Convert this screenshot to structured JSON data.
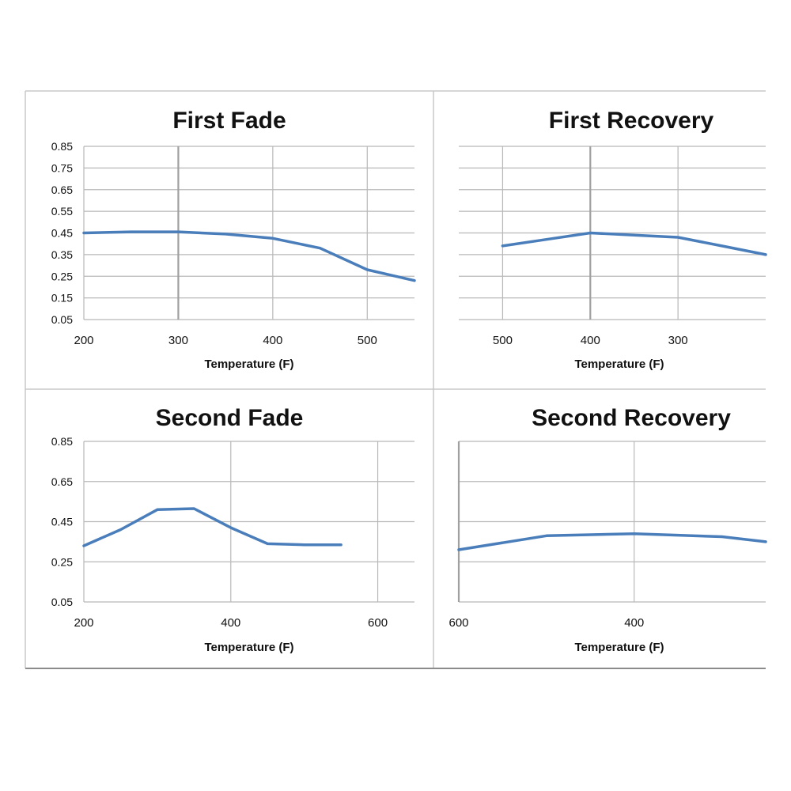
{
  "colors": {
    "line": "#4a7ebb",
    "grid": "#b8b8b8",
    "frame": "#a0a0a0",
    "text": "#111111"
  },
  "chart_data": [
    {
      "type": "line",
      "title": "First Fade",
      "xlabel": "Temperature (F)",
      "ylabel": "",
      "x_ticks": [
        200,
        300,
        400,
        500
      ],
      "y_ticks": [
        "0.85",
        "0.75",
        "0.65",
        "0.55",
        "0.45",
        "0.35",
        "0.25",
        "0.15",
        "0.05"
      ],
      "xlim": [
        200,
        550
      ],
      "ylim": [
        0.05,
        0.85
      ],
      "grid": true,
      "series": [
        {
          "x": [
            200,
            250,
            300,
            350,
            400,
            450,
            500,
            550
          ],
          "y": [
            0.45,
            0.455,
            0.455,
            0.445,
            0.425,
            0.38,
            0.28,
            0.23
          ]
        }
      ]
    },
    {
      "type": "line",
      "title": "First Recovery",
      "xlabel": "Temperature (F)",
      "ylabel": "",
      "x_ticks": [
        500,
        400,
        300
      ],
      "y_ticks": [],
      "xlim": [
        550,
        200
      ],
      "ylim": [
        0.05,
        0.85
      ],
      "grid": true,
      "series": [
        {
          "x": [
            500,
            450,
            400,
            350,
            300,
            250,
            200
          ],
          "y": [
            0.39,
            0.42,
            0.45,
            0.44,
            0.43,
            0.39,
            0.35
          ]
        }
      ]
    },
    {
      "type": "line",
      "title": "Second Fade",
      "xlabel": "Temperature (F)",
      "ylabel": "",
      "x_ticks": [
        200,
        400,
        600
      ],
      "y_ticks": [
        "0.85",
        "0.65",
        "0.45",
        "0.25",
        "0.05"
      ],
      "xlim": [
        200,
        650
      ],
      "ylim": [
        0.05,
        0.85
      ],
      "grid": true,
      "series": [
        {
          "x": [
            200,
            250,
            300,
            350,
            400,
            450,
            500,
            550
          ],
          "y": [
            0.33,
            0.41,
            0.51,
            0.515,
            0.42,
            0.34,
            0.335,
            0.335
          ]
        }
      ]
    },
    {
      "type": "line",
      "title": "Second Recovery",
      "xlabel": "Temperature (F)",
      "ylabel": "",
      "x_ticks": [
        600,
        400
      ],
      "y_ticks": [],
      "xlim": [
        600,
        250
      ],
      "ylim": [
        0.05,
        0.85
      ],
      "grid": true,
      "series": [
        {
          "x": [
            600,
            500,
            400,
            300,
            250
          ],
          "y": [
            0.31,
            0.38,
            0.39,
            0.375,
            0.35
          ]
        }
      ]
    }
  ]
}
